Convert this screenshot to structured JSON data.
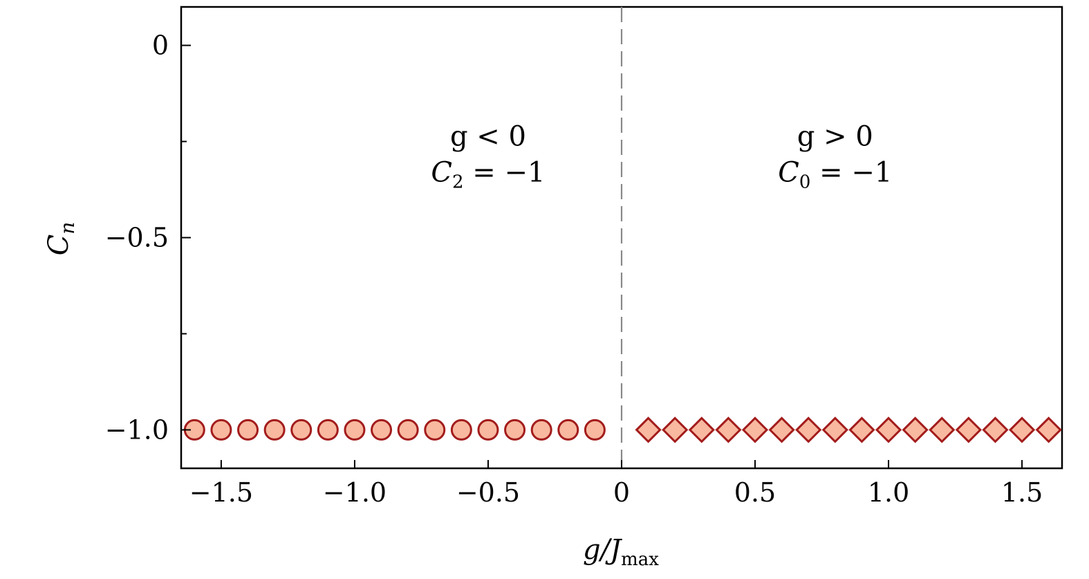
{
  "chart_data": {
    "type": "scatter",
    "xlabel": "g/J",
    "xlabel_subscript": "max",
    "ylabel": "C",
    "ylabel_subscript": "n",
    "xlim": [
      -1.65,
      1.65
    ],
    "ylim": [
      -1.1,
      0.1
    ],
    "x_ticks": [
      {
        "value": -1.5,
        "label": "−1.5"
      },
      {
        "value": -1.0,
        "label": "−1.0"
      },
      {
        "value": -0.5,
        "label": "−0.5"
      },
      {
        "value": 0,
        "label": "0"
      },
      {
        "value": 0.5,
        "label": "0.5"
      },
      {
        "value": 1.0,
        "label": "1.0"
      },
      {
        "value": 1.5,
        "label": "1.5"
      }
    ],
    "x_minor_ticks": [],
    "y_ticks": [
      {
        "value": 0,
        "label": "0"
      },
      {
        "value": -0.5,
        "label": "−0.5"
      },
      {
        "value": -1.0,
        "label": "−1.0"
      }
    ],
    "y_minor_ticks": [
      -0.25,
      -0.75
    ],
    "grid": false,
    "reference_line": {
      "x": 0,
      "style": "dashed",
      "color": "#888888"
    },
    "annotations": [
      {
        "id": "left",
        "line1": "g < 0",
        "line2_main": "C",
        "line2_sub": "2",
        "line2_rest": " = −1",
        "x": -0.5,
        "y": -0.3
      },
      {
        "id": "right",
        "line1": "g > 0",
        "line2_main": "C",
        "line2_sub": "0",
        "line2_rest": " = −1",
        "x": 0.8,
        "y": -0.3
      }
    ],
    "series": [
      {
        "marker": "circle",
        "fill": "#f8b9a0",
        "stroke": "#a31c1c",
        "x": [
          -1.6,
          -1.5,
          -1.4,
          -1.3,
          -1.2,
          -1.1,
          -1.0,
          -0.9,
          -0.8,
          -0.7,
          -0.6,
          -0.5,
          -0.4,
          -0.3,
          -0.2,
          -0.1
        ],
        "y": [
          -1,
          -1,
          -1,
          -1,
          -1,
          -1,
          -1,
          -1,
          -1,
          -1,
          -1,
          -1,
          -1,
          -1,
          -1,
          -1
        ]
      },
      {
        "marker": "diamond",
        "fill": "#f8b9a0",
        "stroke": "#a31c1c",
        "x": [
          0.1,
          0.2,
          0.3,
          0.4,
          0.5,
          0.6,
          0.7,
          0.8,
          0.9,
          1.0,
          1.1,
          1.2,
          1.3,
          1.4,
          1.5,
          1.6
        ],
        "y": [
          -1,
          -1,
          -1,
          -1,
          -1,
          -1,
          -1,
          -1,
          -1,
          -1,
          -1,
          -1,
          -1,
          -1,
          -1,
          -1
        ]
      }
    ]
  }
}
